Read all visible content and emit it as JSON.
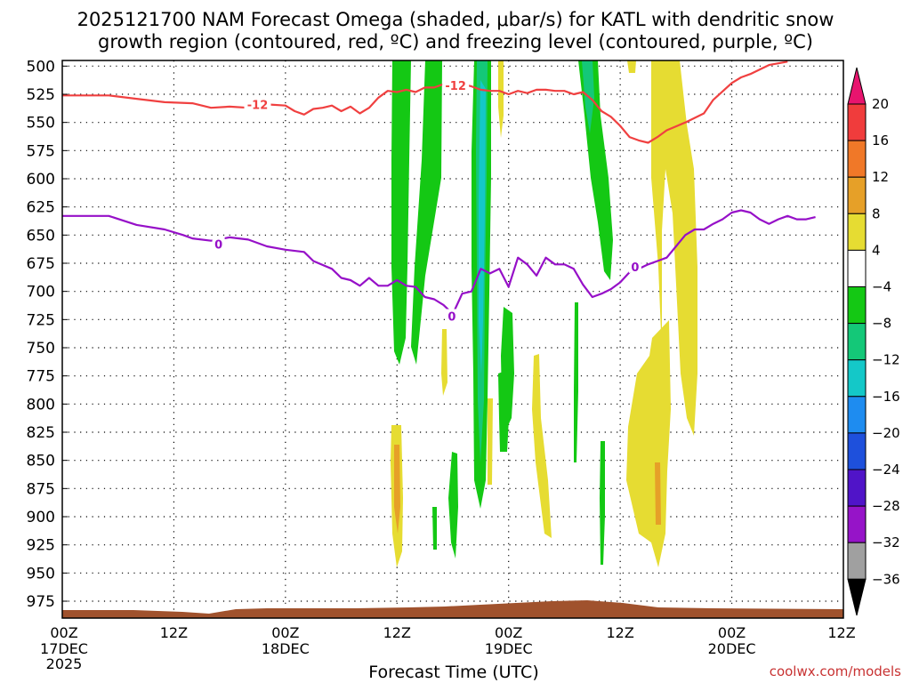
{
  "chart_data": {
    "type": "time-height cross section",
    "title_line1": "2025121700 NAM Forecast Omega (shaded, μbar/s) for KATL with dendritic snow",
    "title_line2": "growth region (contoured, red, ºC) and freezing level (contoured, purple, ºC)",
    "xlabel": "Forecast Time (UTC)",
    "watermark": "coolwx.com/models",
    "x_unit": "hours since 17DEC 00Z",
    "xlim": [
      0,
      84
    ],
    "ylim_hpa": [
      495,
      990
    ],
    "x_ticks": [
      {
        "hour": 0,
        "line1": "00Z",
        "line2": "17DEC",
        "line3": "2025"
      },
      {
        "hour": 12,
        "line1": "12Z",
        "line2": "",
        "line3": ""
      },
      {
        "hour": 24,
        "line1": "00Z",
        "line2": "18DEC",
        "line3": ""
      },
      {
        "hour": 36,
        "line1": "12Z",
        "line2": "",
        "line3": ""
      },
      {
        "hour": 48,
        "line1": "00Z",
        "line2": "19DEC",
        "line3": ""
      },
      {
        "hour": 60,
        "line1": "12Z",
        "line2": "",
        "line3": ""
      },
      {
        "hour": 72,
        "line1": "00Z",
        "line2": "20DEC",
        "line3": ""
      },
      {
        "hour": 84,
        "line1": "12Z",
        "line2": "",
        "line3": ""
      }
    ],
    "y_ticks": [
      500,
      525,
      550,
      575,
      600,
      625,
      650,
      675,
      700,
      725,
      750,
      775,
      800,
      825,
      850,
      875,
      900,
      925,
      950,
      975
    ],
    "colorbar": {
      "labels": [
        "20",
        "16",
        "12",
        "8",
        "4",
        "−4",
        "−8",
        "−12",
        "−16",
        "−20",
        "−24",
        "−28",
        "−32",
        "−36"
      ],
      "colors": [
        "#e8146e",
        "#f03c3c",
        "#f07828",
        "#e6a028",
        "#e6dc32",
        "#ffffff",
        "#14c814",
        "#14c878",
        "#14c8c8",
        "#1e8cf0",
        "#1e50dc",
        "#5014c8",
        "#9614c8",
        "#a0a0a0",
        "#000000"
      ]
    },
    "shading_colors": {
      "yellow": "#e6dc32",
      "orange": "#e6a028",
      "green": "#14c814",
      "teal": "#14c878",
      "cyan": "#14c8c8"
    },
    "series": [
      {
        "name": "-12C isotherm (dendritic growth region)",
        "color": "#f04040",
        "labels": [
          {
            "text": "-12",
            "hour": 21,
            "hpa": 534
          },
          {
            "text": "-12",
            "hour": 42.3,
            "hpa": 517
          }
        ],
        "points": [
          [
            0,
            526
          ],
          [
            5,
            526
          ],
          [
            8,
            529
          ],
          [
            11,
            532
          ],
          [
            14,
            533
          ],
          [
            16,
            537
          ],
          [
            18,
            536
          ],
          [
            20,
            537
          ],
          [
            22,
            534
          ],
          [
            24,
            535
          ],
          [
            25,
            540
          ],
          [
            26,
            543
          ],
          [
            27,
            538
          ],
          [
            28,
            537
          ],
          [
            29,
            535
          ],
          [
            30,
            540
          ],
          [
            31,
            536
          ],
          [
            32,
            542
          ],
          [
            33,
            537
          ],
          [
            34,
            528
          ],
          [
            35,
            522
          ],
          [
            36,
            523
          ],
          [
            37,
            521
          ],
          [
            38,
            523
          ],
          [
            39,
            519
          ],
          [
            40,
            519
          ],
          [
            41,
            516
          ],
          [
            43,
            516
          ],
          [
            44,
            518
          ],
          [
            45,
            521
          ],
          [
            46,
            522
          ],
          [
            47,
            522
          ],
          [
            48,
            525
          ],
          [
            49,
            522
          ],
          [
            50,
            524
          ],
          [
            51,
            521
          ],
          [
            52,
            521
          ],
          [
            53,
            522
          ],
          [
            54,
            522
          ],
          [
            55,
            525
          ],
          [
            56,
            523
          ],
          [
            57,
            530
          ],
          [
            58,
            540
          ],
          [
            59,
            545
          ],
          [
            60,
            553
          ],
          [
            61,
            563
          ],
          [
            62,
            566
          ],
          [
            63,
            568
          ],
          [
            64,
            563
          ],
          [
            65,
            557
          ],
          [
            67,
            550
          ],
          [
            68,
            546
          ],
          [
            69,
            542
          ],
          [
            70,
            530
          ],
          [
            72,
            515
          ],
          [
            73,
            510
          ],
          [
            74,
            507
          ],
          [
            76,
            499
          ],
          [
            78,
            496
          ]
        ]
      },
      {
        "name": "0C freezing level",
        "color": "#9610c8",
        "labels": [
          {
            "text": "0",
            "hour": 16.8,
            "hpa": 658
          },
          {
            "text": "0",
            "hour": 41.9,
            "hpa": 722
          },
          {
            "text": "0",
            "hour": 61.6,
            "hpa": 678
          }
        ],
        "points": [
          [
            0,
            633
          ],
          [
            5,
            633
          ],
          [
            8,
            641
          ],
          [
            11,
            645
          ],
          [
            13,
            650
          ],
          [
            14,
            653
          ],
          [
            16,
            655
          ],
          [
            18,
            652
          ],
          [
            20,
            654
          ],
          [
            22,
            660
          ],
          [
            24,
            663
          ],
          [
            26,
            665
          ],
          [
            27,
            673
          ],
          [
            29,
            680
          ],
          [
            30,
            688
          ],
          [
            31,
            690
          ],
          [
            32,
            695
          ],
          [
            33,
            688
          ],
          [
            34,
            695
          ],
          [
            35,
            695
          ],
          [
            36,
            690
          ],
          [
            37,
            695
          ],
          [
            38,
            696
          ],
          [
            39,
            705
          ],
          [
            40,
            707
          ],
          [
            41,
            712
          ],
          [
            42,
            720
          ],
          [
            43,
            702
          ],
          [
            44,
            700
          ],
          [
            45,
            680
          ],
          [
            46,
            684
          ],
          [
            47,
            680
          ],
          [
            48,
            696
          ],
          [
            49,
            670
          ],
          [
            50,
            676
          ],
          [
            51,
            686
          ],
          [
            52,
            670
          ],
          [
            53,
            676
          ],
          [
            54,
            676
          ],
          [
            55,
            680
          ],
          [
            56,
            694
          ],
          [
            57,
            705
          ],
          [
            58,
            702
          ],
          [
            59,
            698
          ],
          [
            60,
            692
          ],
          [
            61,
            683
          ],
          [
            62,
            680
          ],
          [
            63,
            676
          ],
          [
            64,
            673
          ],
          [
            65,
            670
          ],
          [
            66,
            660
          ],
          [
            67,
            650
          ],
          [
            68,
            645
          ],
          [
            69,
            645
          ],
          [
            70,
            640
          ],
          [
            71,
            636
          ],
          [
            72,
            630
          ],
          [
            73,
            628
          ],
          [
            74,
            630
          ],
          [
            75,
            636
          ],
          [
            76,
            640
          ],
          [
            77,
            636
          ],
          [
            78,
            633
          ],
          [
            79,
            636
          ],
          [
            80,
            636
          ],
          [
            81,
            634
          ]
        ]
      }
    ]
  }
}
